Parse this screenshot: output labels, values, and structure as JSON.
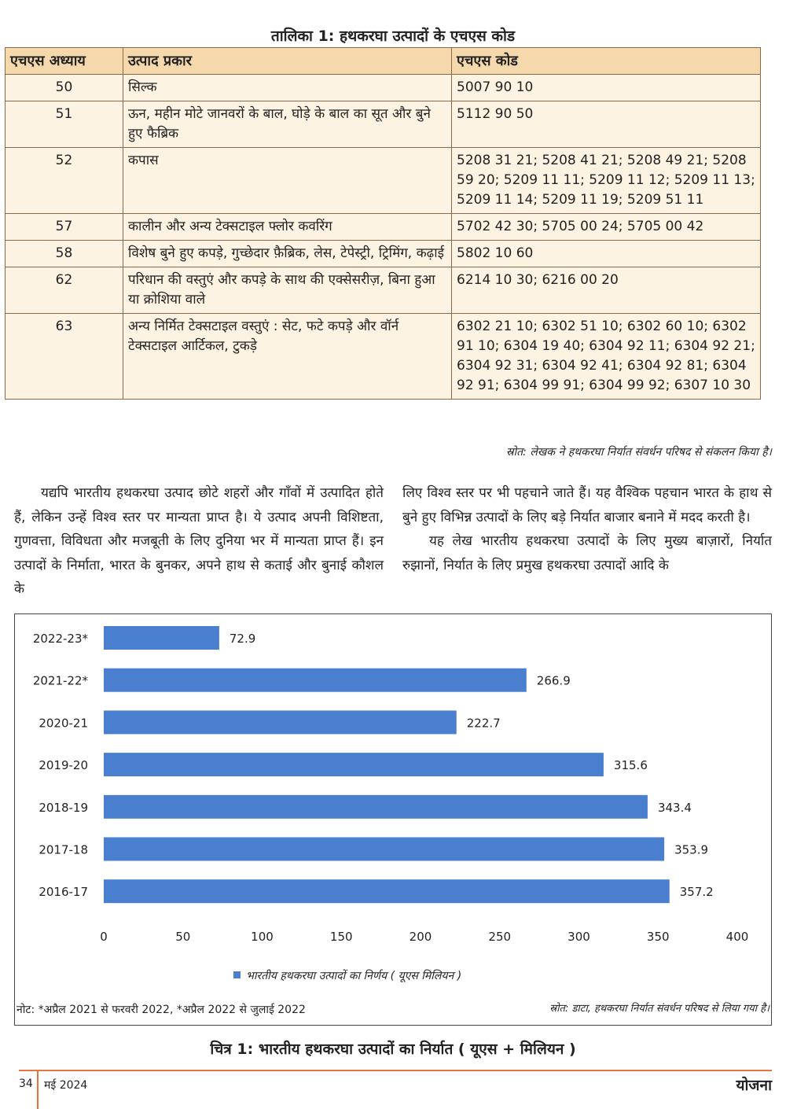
{
  "table": {
    "caption": "तालिका 1: हथकरघा उत्पादों के एचएस कोड",
    "headers": [
      "एचएस अध्याय",
      "उत्पाद प्रकार",
      "एचएस कोड"
    ],
    "rows": [
      [
        "50",
        "सिल्क",
        "5007 90 10"
      ],
      [
        "51",
        "ऊन, महीन मोटे जानवरों के बाल, घोड़े के बाल का सूत और बुने हुए फैब्रिक",
        "5112 90 50"
      ],
      [
        "52",
        "कपास",
        "5208 31 21; 5208 41 21; 5208 49 21; 5208 59 20; 5209 11 11; 5209 11 12; 5209 11 13; 5209 11 14; 5209 11 19; 5209 51 11"
      ],
      [
        "57",
        "कालीन और अन्य टेक्सटाइल फ्लोर कवरिंग",
        "5702 42 30; 5705 00 24; 5705 00 42"
      ],
      [
        "58",
        "विशेष बुने हुए कपड़े, गुच्छेदार फ़ैब्रिक, लेस, टेपेस्ट्री, ट्रिमिंग, कढ़ाई",
        "5802 10 60"
      ],
      [
        "62",
        "परिधान की वस्तुएं और कपड़े के साथ की एक्सेसरीज़, बिना हुआ या क्रोशिया वाले",
        "6214 10 30; 6216 00 20"
      ],
      [
        "63",
        "अन्य निर्मित टेक्सटाइल वस्तुएं : सेट, फटे कपड़े और वॉर्न टेक्सटाइल आर्टिकल, टुकड़े",
        "6302 21 10; 6302 51 10; 6302 60 10; 6302 91 10; 6304 19 40; 6304 92 11; 6304 92 21; 6304 92 31; 6304 92 41; 6304 92 81; 6304 92 91; 6304 99 91; 6304 99 92; 6307 10 30"
      ]
    ],
    "source": "स्रोत: लेखक ने हथकरघा निर्यात संवर्धन परिषद से संकलन किया है।"
  },
  "body": {
    "left": "यद्यपि भारतीय हथकरघा उत्पाद छोटे शहरों और गाँवों में उत्पादित होते हैं, लेकिन उन्हें विश्व स्तर पर मान्यता प्राप्त है। ये उत्पाद अपनी विशिष्टता, गुणवत्ता, विविधता और मजबूती के लिए दुनिया भर में मान्यता प्राप्त हैं। इन उत्पादों के निर्माता, भारत के बुनकर, अपने हाथ से कताई और बुनाई कौशल के",
    "right_p1": "लिए विश्व स्तर पर भी पहचाने जाते हैं। यह वैश्विक पहचान भारत के हाथ से बुने हुए विभिन्न उत्पादों के लिए बड़े निर्यात बाजार बनाने में मदद करती है।",
    "right_p2": "यह लेख भारतीय हथकरघा उत्पादों के लिए मुख्य बाज़ारों, निर्यात रुझानों, निर्यात के लिए प्रमुख हथकरघा उत्पादों आदि के"
  },
  "chart_data": {
    "type": "bar",
    "orientation": "horizontal",
    "categories": [
      "2022-23*",
      "2021-22*",
      "2020-21",
      "2019-20",
      "2018-19",
      "2017-18",
      "2016-17"
    ],
    "series": [
      {
        "name": "भारतीय हथकरघा उत्पादों का निर्णय ( यूएस मिलियन )",
        "values": [
          72.9,
          266.9,
          222.7,
          315.6,
          343.4,
          353.9,
          357.2
        ]
      }
    ],
    "xlim": [
      0,
      400
    ],
    "xticks": [
      "0",
      "50",
      "100",
      "150",
      "200",
      "250",
      "300",
      "350",
      "400"
    ],
    "grid": false,
    "legend": "bottom",
    "color": "#4a7fd0",
    "note": "नोट: *अप्रैल 2021 से फरवरी 2022, *अप्रैल 2022 से जुलाई 2022",
    "source": "स्रोत: डाटा, हथकरघा निर्यात संवर्धन परिषद से लिया गया है।",
    "caption": "चित्र 1: भारतीय हथकरघा उत्पादों का निर्यात ( यूएस + मिलियन )"
  },
  "footer": {
    "page": "34",
    "date": "मई 2024",
    "magazine": "योजना"
  }
}
